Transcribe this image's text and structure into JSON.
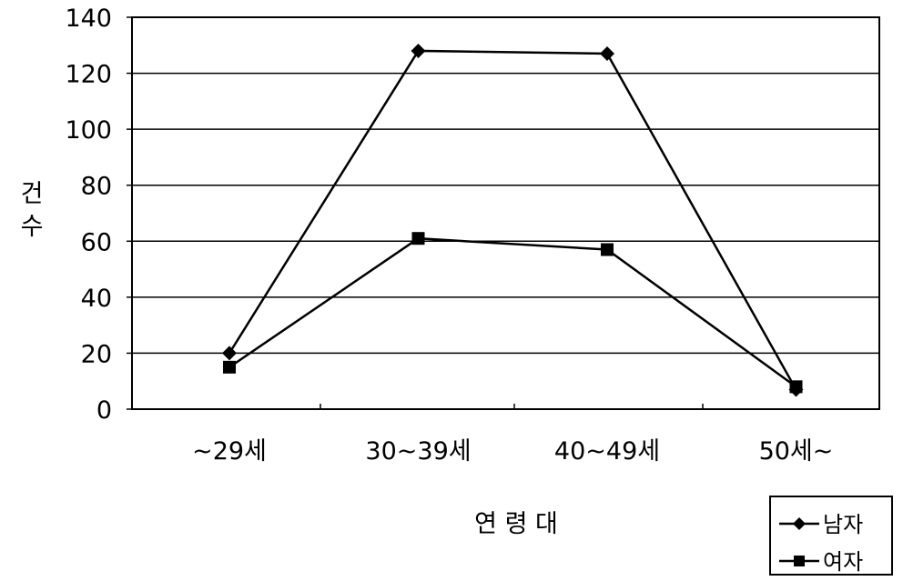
{
  "chart_data": {
    "type": "line",
    "categories": [
      "~29세",
      "30~39세",
      "40~49세",
      "50세~"
    ],
    "series": [
      {
        "name": "남자",
        "values": [
          20,
          128,
          127,
          7
        ],
        "marker": "diamond",
        "color": "#000000"
      },
      {
        "name": "여자",
        "values": [
          15,
          61,
          57,
          8
        ],
        "marker": "square",
        "color": "#000000"
      }
    ],
    "xlabel": "연 령 대",
    "ylabel": [
      "건",
      "수"
    ],
    "ylim": [
      0,
      140
    ],
    "yticks": [
      0,
      20,
      40,
      60,
      80,
      100,
      120,
      140
    ],
    "grid": true,
    "legend_position": "bottom-right"
  }
}
